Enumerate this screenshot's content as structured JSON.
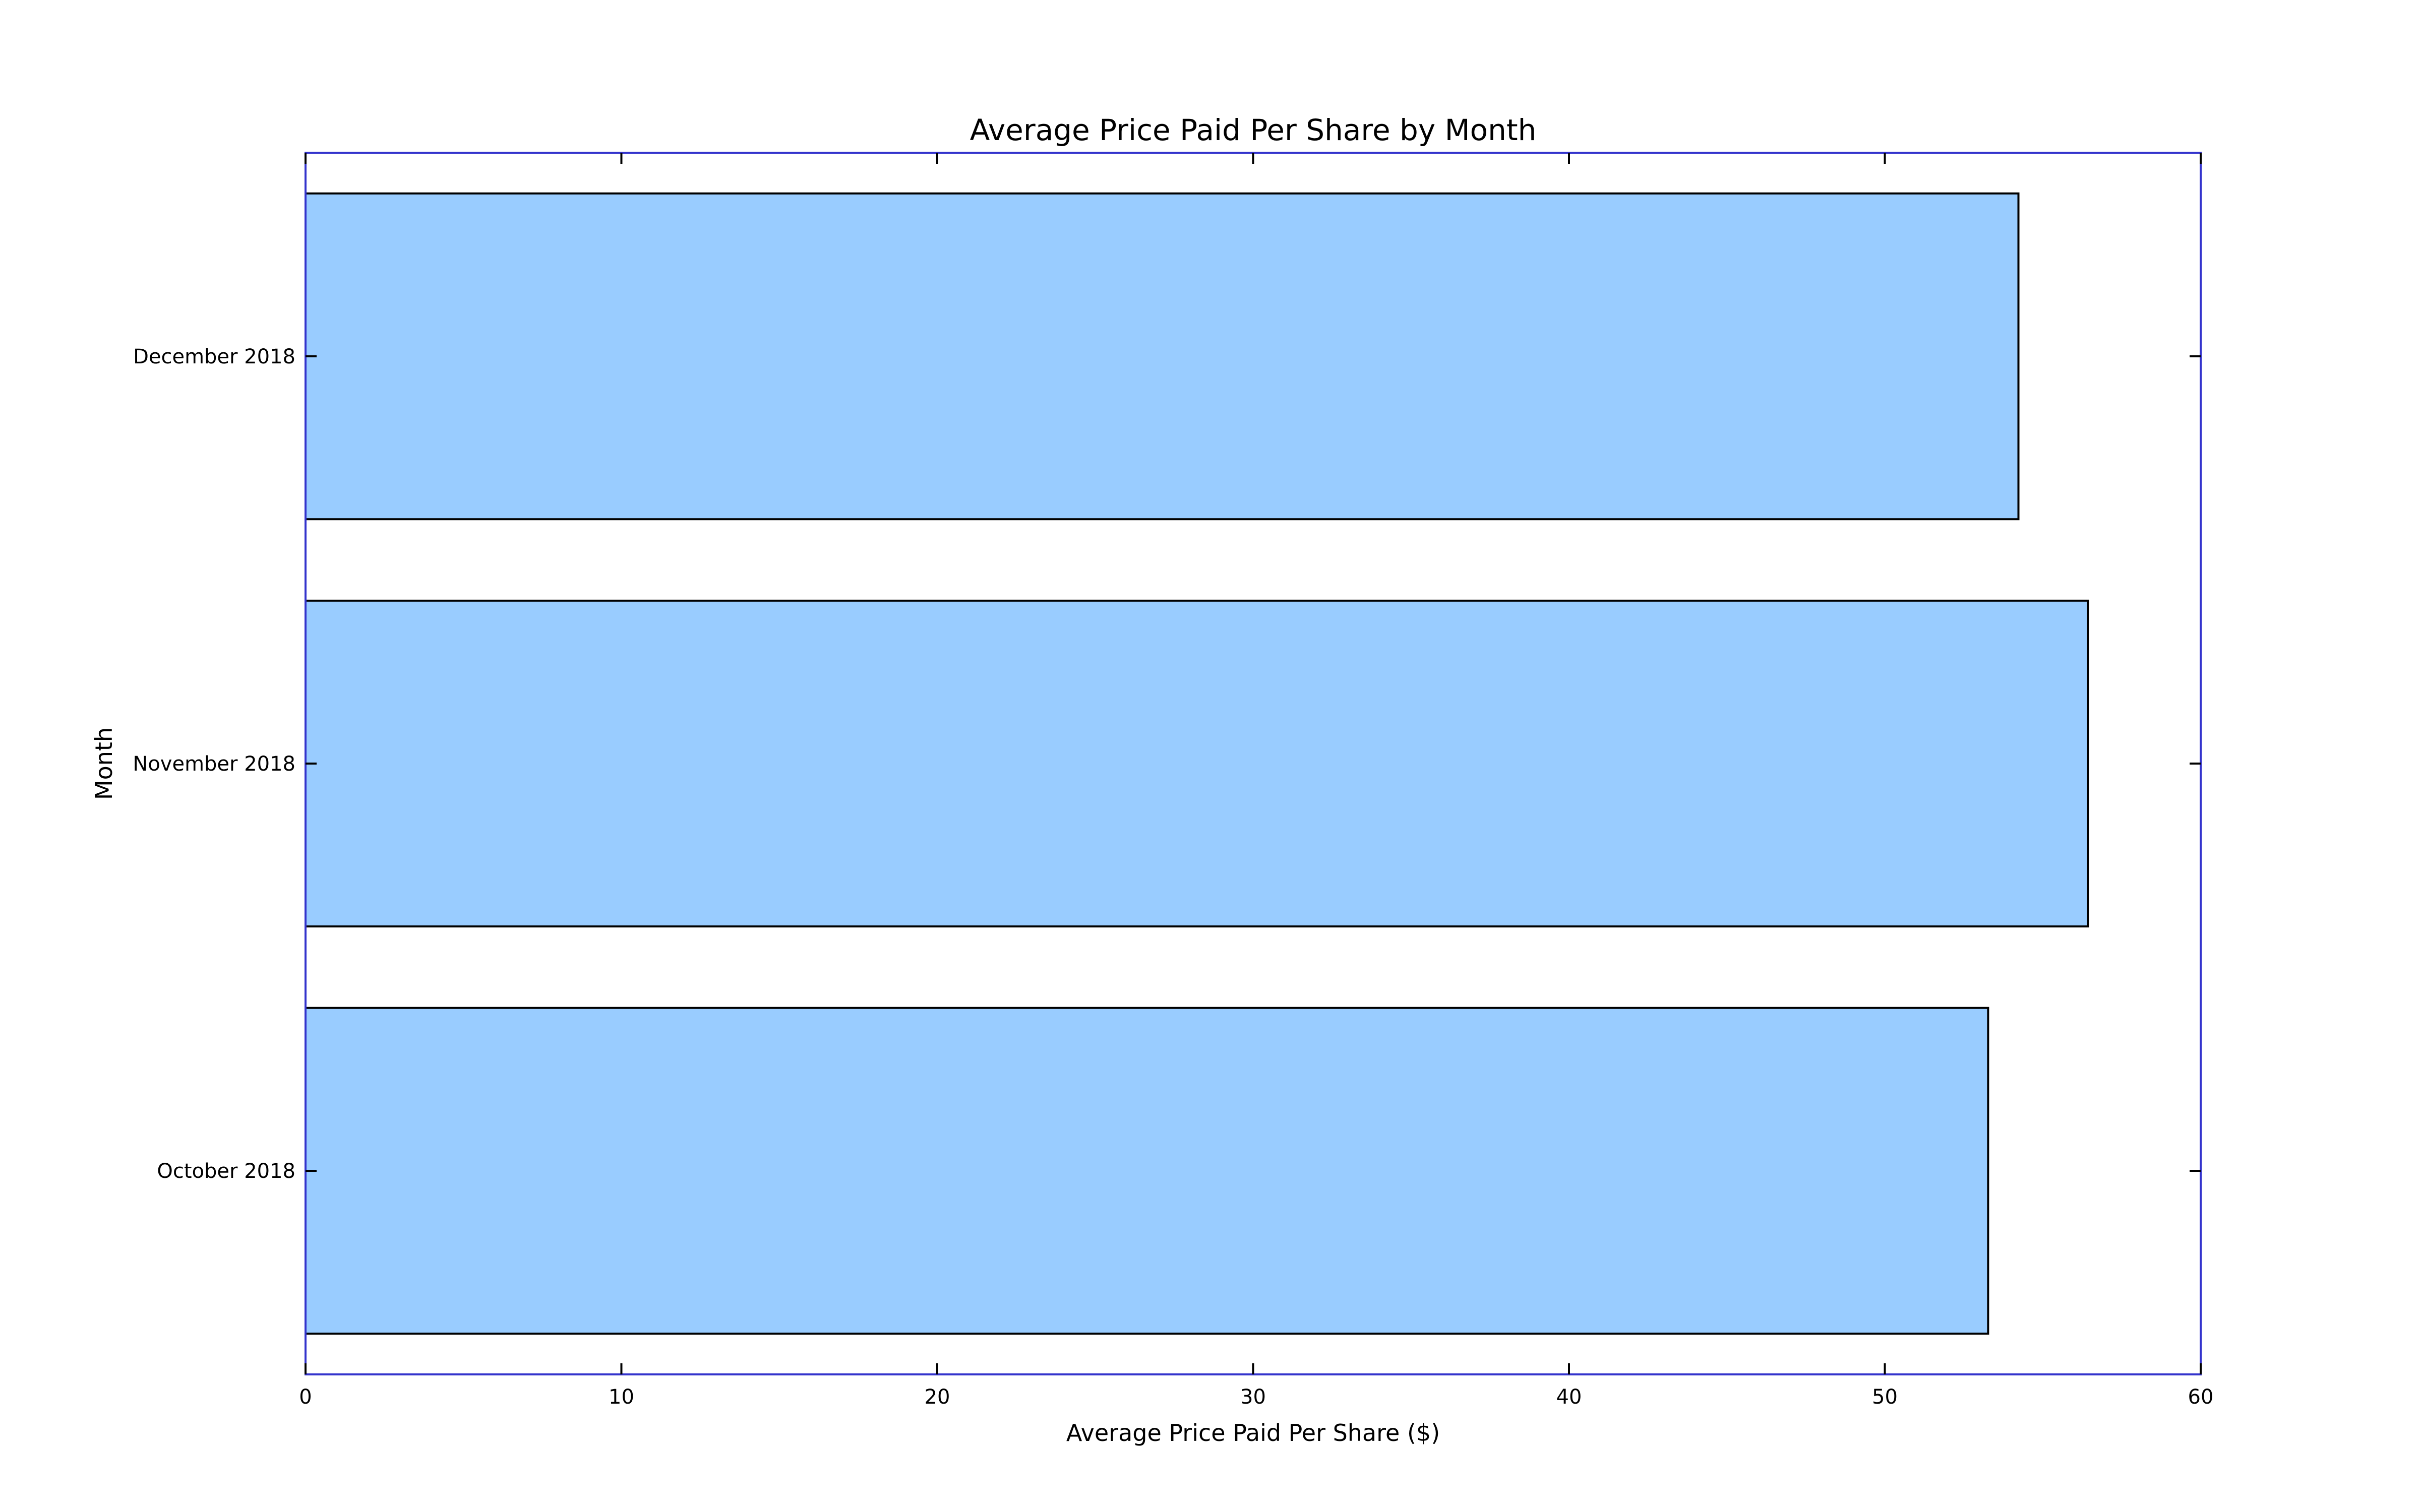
{
  "chart_data": {
    "type": "bar",
    "orientation": "horizontal",
    "title": "Average Price Paid Per Share by Month",
    "xlabel": "Average Price Paid Per Share ($)",
    "ylabel": "Month",
    "categories": [
      "October 2018",
      "November 2018",
      "December 2018"
    ],
    "values": [
      53.27,
      56.43,
      54.23
    ],
    "xlim": [
      0,
      60
    ],
    "xticks": [
      0,
      10,
      20,
      30,
      40,
      50,
      60
    ],
    "xtick_labels": [
      "0",
      "10",
      "20",
      "30",
      "40",
      "50",
      "60"
    ],
    "grid": false,
    "legend": "none",
    "colors": {
      "bar_fill": "#99ccff",
      "bar_edge": "#000000",
      "axis_frame": "#3333cc",
      "tick": "#000000",
      "text": "#000000"
    }
  }
}
